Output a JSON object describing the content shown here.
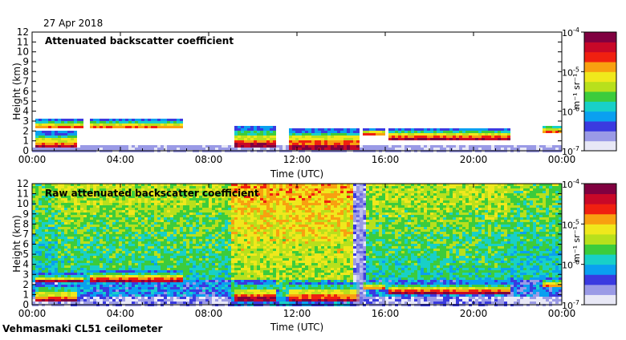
{
  "date": "27 Apr 2018",
  "footer": "Vehmasmaki CL51 ceilometer",
  "colors": {
    "scale": [
      "#e8e8f6",
      "#9a9ae6",
      "#3a3ae0",
      "#0aa0f0",
      "#18d0c8",
      "#3ccc3c",
      "#b8e01c",
      "#f0e81c",
      "#f8a010",
      "#f02010",
      "#c80828",
      "#800040"
    ]
  },
  "chart_data": [
    {
      "type": "heatmap",
      "title": "Attenuated backscatter coefficient",
      "xlabel": "Time (UTC)",
      "ylabel": "Height (km)",
      "xlim": [
        0,
        24
      ],
      "ylim": [
        0,
        12
      ],
      "x_ticks": [
        0,
        4,
        8,
        12,
        16,
        20,
        24
      ],
      "x_tick_labels": [
        "00:00",
        "04:00",
        "08:00",
        "12:00",
        "16:00",
        "20:00",
        "00:00"
      ],
      "y_ticks": [
        0,
        1,
        2,
        3,
        4,
        5,
        6,
        7,
        8,
        9,
        10,
        11,
        12
      ],
      "y_tick_labels": [
        "0",
        "1",
        "2",
        "3",
        "4",
        "5",
        "6",
        "7",
        "8",
        "9",
        "10",
        "11",
        "12"
      ],
      "colorbar": {
        "scale": "log",
        "range": [
          1e-07,
          0.0001
        ],
        "tick_labels": [
          [
            "10",
            "-4"
          ],
          [
            "10",
            "-5"
          ],
          [
            "10",
            "-6"
          ],
          [
            "10",
            "-7"
          ]
        ],
        "unit": "m⁻¹ sr⁻¹"
      }
    },
    {
      "type": "heatmap",
      "title": "Raw attenuated backscatter coefficient",
      "xlabel": "Time (UTC)",
      "ylabel": "Height (km)",
      "xlim": [
        0,
        24
      ],
      "ylim": [
        0,
        12
      ],
      "x_ticks": [
        0,
        4,
        8,
        12,
        16,
        20,
        24
      ],
      "x_tick_labels": [
        "00:00",
        "04:00",
        "08:00",
        "12:00",
        "16:00",
        "20:00",
        "00:00"
      ],
      "y_ticks": [
        0,
        1,
        2,
        3,
        4,
        5,
        6,
        7,
        8,
        9,
        10,
        11,
        12
      ],
      "y_tick_labels": [
        "0",
        "1",
        "2",
        "3",
        "4",
        "5",
        "6",
        "7",
        "8",
        "9",
        "10",
        "11",
        "12"
      ],
      "colorbar": {
        "scale": "log",
        "range": [
          1e-07,
          0.0001
        ],
        "tick_labels": [
          [
            "10",
            "-4"
          ],
          [
            "10",
            "-5"
          ],
          [
            "10",
            "-6"
          ],
          [
            "10",
            "-7"
          ]
        ],
        "unit": "m⁻¹ sr⁻¹"
      }
    }
  ],
  "cloud_layers": [
    {
      "start": 0.1,
      "end": 2.4,
      "base": 2.2,
      "top": 3.2
    },
    {
      "start": 0.1,
      "end": 2.1,
      "base": 0.3,
      "top": 2.0
    },
    {
      "start": 2.6,
      "end": 6.9,
      "base": 2.2,
      "top": 3.3
    },
    {
      "start": 9.2,
      "end": 11.0,
      "base": 0.4,
      "top": 2.4
    },
    {
      "start": 11.6,
      "end": 14.8,
      "base": 0.2,
      "top": 2.3
    },
    {
      "start": 15.0,
      "end": 16.0,
      "base": 1.5,
      "top": 2.3
    },
    {
      "start": 16.2,
      "end": 21.7,
      "base": 1.0,
      "top": 2.3
    },
    {
      "start": 23.2,
      "end": 24.0,
      "base": 1.7,
      "top": 2.6
    }
  ]
}
